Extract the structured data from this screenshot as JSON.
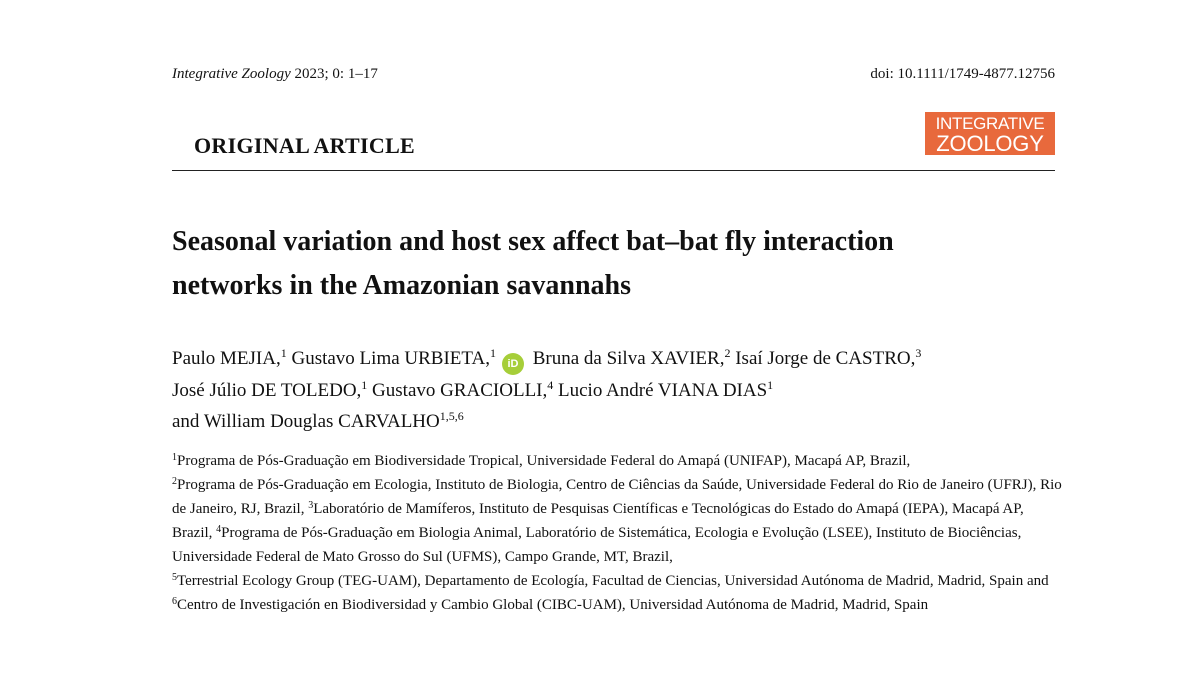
{
  "header": {
    "journal": "Integrative Zoology",
    "citation": " 2023; 0: 1–17",
    "doi": "doi: 10.1111/1749-4877.12756"
  },
  "article_type": "ORIGINAL ARTICLE",
  "logo": {
    "line1": "INTEGRATIVE",
    "line2": "ZOOLOGY",
    "color": "#e8693c"
  },
  "title": {
    "line1": "Seasonal variation and host sex affect bat–bat fly interaction",
    "line2": "networks in the Amazonian savannahs"
  },
  "orcid_icon": {
    "label": "iD",
    "color": "#a6ce39"
  },
  "authors": [
    {
      "name": "Paulo MEJIA,",
      "sup": "1"
    },
    {
      "name": "Gustavo Lima URBIETA,",
      "sup": "1"
    },
    {
      "name": "Bruna da Silva XAVIER,",
      "sup": "2"
    },
    {
      "name": "Isaí Jorge de CASTRO,",
      "sup": "3"
    },
    {
      "name": "José Júlio DE TOLEDO,",
      "sup": "1"
    },
    {
      "name": "Gustavo GRACIOLLI,",
      "sup": "4"
    },
    {
      "name": "Lucio André VIANA DIAS",
      "sup": "1"
    },
    {
      "name": "and William Douglas CARVALHO",
      "sup": "1,5,6"
    }
  ],
  "affiliations": [
    {
      "sup": "1",
      "text": "Programa de Pós-Graduação em Biodiversidade Tropical, Universidade Federal do Amapá (UNIFAP), Macapá AP, Brazil, "
    },
    {
      "sup": "2",
      "text": "Programa de Pós-Graduação em Ecologia, Instituto de Biologia, Centro de Ciências da Saúde, Universidade Federal do Rio de Janeiro (UFRJ), Rio de Janeiro, RJ, Brazil, "
    },
    {
      "sup": "3",
      "text": "Laboratório de Mamíferos, Instituto de Pesquisas Científicas e Tecnológicas do Estado do Amapá (IEPA), Macapá AP, Brazil, "
    },
    {
      "sup": "4",
      "text": "Programa de Pós-Graduação em Biologia Animal, Laboratório de Sistemática, Ecologia e Evolução (LSEE), Instituto de Biociências, Universidade Federal de Mato Grosso do Sul (UFMS), Campo Grande, MT, Brazil, "
    },
    {
      "sup": "5",
      "text": "Terrestrial Ecology Group (TEG-UAM), Departamento de Ecología, Facultad de Ciencias, Universidad Autónoma de Madrid, Madrid, Spain and "
    },
    {
      "sup": "6",
      "text": "Centro de Investigación en Biodiversidad y Cambio Global (CIBC-UAM), Universidad Autónoma de Madrid, Madrid, Spain"
    }
  ]
}
